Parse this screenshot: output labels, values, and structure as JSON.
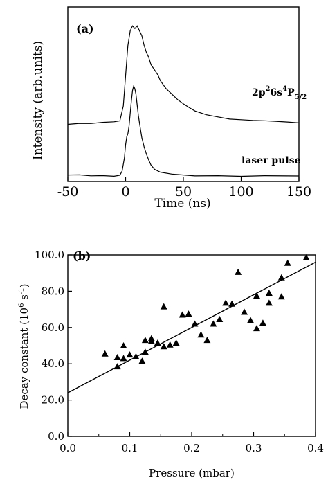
{
  "chart_data": [
    {
      "type": "line",
      "panel_label": "(a)",
      "xlabel": "Time (ns)",
      "ylabel": "Intensity (arb.units)",
      "xlim": [
        -50,
        150
      ],
      "x_ticks": [
        "-50",
        "0",
        "50",
        "100",
        "150"
      ],
      "series": [
        {
          "name": "2p²6s⁴P5/2",
          "x": [
            -50,
            -40,
            -30,
            -20,
            -10,
            -5,
            -2,
            0,
            2,
            4,
            6,
            8,
            10,
            12,
            14,
            16,
            18,
            20,
            22,
            25,
            28,
            30,
            35,
            40,
            45,
            50,
            55,
            60,
            70,
            80,
            90,
            100,
            110,
            120,
            130,
            140,
            150
          ],
          "y": [
            1.0,
            1.01,
            1.0,
            1.02,
            1.03,
            1.05,
            1.35,
            1.95,
            2.55,
            2.85,
            2.95,
            2.9,
            2.95,
            2.85,
            2.75,
            2.55,
            2.4,
            2.3,
            2.15,
            2.05,
            1.95,
            1.85,
            1.7,
            1.6,
            1.5,
            1.42,
            1.35,
            1.28,
            1.2,
            1.15,
            1.1,
            1.08,
            1.06,
            1.05,
            1.04,
            1.03,
            1.02
          ]
        },
        {
          "name": "laser pulse",
          "x": [
            -50,
            -40,
            -30,
            -20,
            -10,
            -5,
            -3,
            -1,
            0,
            1,
            2,
            3,
            4,
            5,
            6,
            7,
            8,
            9,
            10,
            11,
            12,
            13,
            14,
            15,
            16,
            18,
            20,
            22,
            25,
            30,
            40,
            50,
            60,
            80,
            100,
            120,
            150
          ],
          "y": [
            0.0,
            0.01,
            0.0,
            0.01,
            0.0,
            0.02,
            0.1,
            0.35,
            0.6,
            0.75,
            0.8,
            0.95,
            1.2,
            1.45,
            1.65,
            1.75,
            1.7,
            1.6,
            1.4,
            1.2,
            1.05,
            0.9,
            0.75,
            0.65,
            0.55,
            0.4,
            0.28,
            0.18,
            0.1,
            0.05,
            0.02,
            0.01,
            0.0,
            0.01,
            0.0,
            0.01,
            0.0
          ]
        }
      ],
      "annotations": [
        "2p26s4P5/2",
        "laser pulse"
      ]
    },
    {
      "type": "scatter",
      "panel_label": "(b)",
      "xlabel": "Pressure (mbar)",
      "ylabel": "Decay constant (10^6 s^-1)",
      "xlim": [
        0.0,
        0.4
      ],
      "ylim": [
        0.0,
        100.0
      ],
      "x_ticks": [
        "0.0",
        "0.1",
        "0.2",
        "0.3",
        "0.4"
      ],
      "y_ticks": [
        "0.0",
        "20.0",
        "40.0",
        "60.0",
        "80.0",
        "100.0"
      ],
      "points": [
        [
          0.06,
          45.5
        ],
        [
          0.08,
          38.5
        ],
        [
          0.08,
          43.5
        ],
        [
          0.09,
          50.0
        ],
        [
          0.09,
          43.0
        ],
        [
          0.1,
          45.0
        ],
        [
          0.11,
          44.0
        ],
        [
          0.12,
          41.5
        ],
        [
          0.125,
          46.5
        ],
        [
          0.125,
          53.0
        ],
        [
          0.135,
          54.0
        ],
        [
          0.135,
          52.5
        ],
        [
          0.145,
          51.5
        ],
        [
          0.155,
          71.5
        ],
        [
          0.155,
          49.5
        ],
        [
          0.165,
          50.5
        ],
        [
          0.175,
          51.5
        ],
        [
          0.185,
          67.0
        ],
        [
          0.195,
          67.5
        ],
        [
          0.205,
          62.0
        ],
        [
          0.215,
          56.0
        ],
        [
          0.225,
          53.0
        ],
        [
          0.235,
          62.0
        ],
        [
          0.245,
          64.5
        ],
        [
          0.255,
          73.5
        ],
        [
          0.265,
          73.0
        ],
        [
          0.275,
          90.5
        ],
        [
          0.285,
          68.5
        ],
        [
          0.295,
          64.0
        ],
        [
          0.305,
          59.5
        ],
        [
          0.305,
          77.5
        ],
        [
          0.315,
          62.5
        ],
        [
          0.325,
          79.0
        ],
        [
          0.325,
          73.5
        ],
        [
          0.345,
          87.5
        ],
        [
          0.345,
          77.0
        ],
        [
          0.355,
          95.5
        ],
        [
          0.385,
          98.5
        ]
      ],
      "fit": {
        "x": [
          0.0,
          0.4
        ],
        "y": [
          24.0,
          96.0
        ]
      }
    }
  ]
}
